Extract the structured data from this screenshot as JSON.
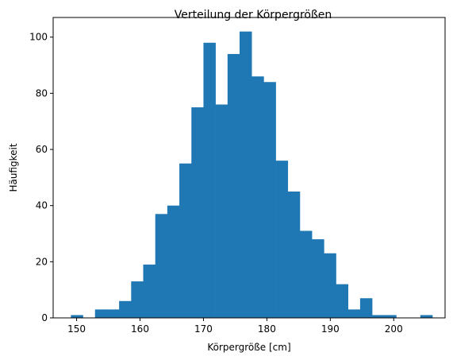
{
  "chart_data": {
    "type": "bar",
    "title": "Verteilung der Körpergrößen",
    "xlabel": "Körpergröße [cm]",
    "ylabel": "Häufigkeit",
    "xlim": [
      146.3,
      208.1
    ],
    "ylim": [
      0,
      107
    ],
    "xticks": [
      150,
      160,
      170,
      180,
      190,
      200
    ],
    "yticks": [
      0,
      20,
      40,
      60,
      80,
      100
    ],
    "bin_edges": [
      149.1,
      151.0,
      152.9,
      154.8,
      156.7,
      158.6,
      160.5,
      162.4,
      164.3,
      166.2,
      168.1,
      170.0,
      171.9,
      173.8,
      175.7,
      177.6,
      179.5,
      181.4,
      183.3,
      185.2,
      187.1,
      189.0,
      190.9,
      192.8,
      194.7,
      196.6,
      198.5,
      200.4,
      202.3,
      204.2,
      206.1
    ],
    "values": [
      1,
      0,
      3,
      3,
      6,
      13,
      19,
      37,
      40,
      55,
      75,
      98,
      76,
      94,
      102,
      86,
      84,
      56,
      45,
      31,
      28,
      23,
      12,
      3,
      7,
      1,
      1,
      0,
      0,
      1
    ],
    "bar_color": "#1f77b4",
    "grid": false,
    "legend": "none"
  }
}
